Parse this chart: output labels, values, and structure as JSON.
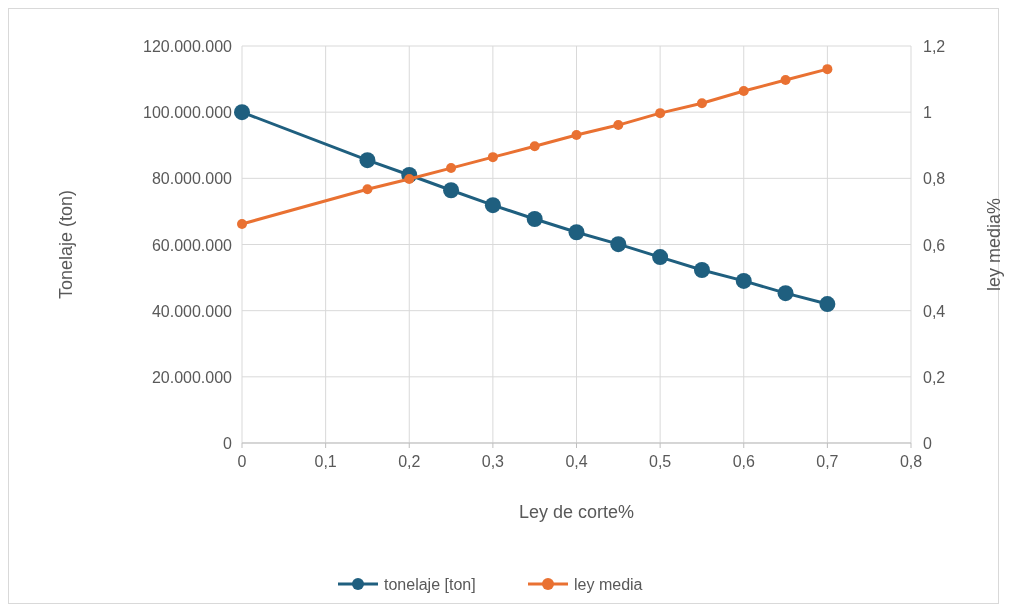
{
  "chart_data": {
    "type": "line",
    "xlabel": "Ley de corte%",
    "ylabel": "Tonelaje (ton)",
    "y2label": "ley media%",
    "x": [
      0,
      0.15,
      0.2,
      0.25,
      0.3,
      0.35,
      0.4,
      0.45,
      0.5,
      0.55,
      0.6,
      0.65,
      0.7
    ],
    "series": [
      {
        "name": "tonelaje [ton]",
        "color": "#1f5f7f",
        "values": [
          100000000,
          85500000,
          81000000,
          76400000,
          71900000,
          67700000,
          63700000,
          60100000,
          56200000,
          52300000,
          49000000,
          45300000,
          42000000
        ]
      },
      {
        "name": "ley media",
        "color": "#e97132",
        "axis": "y2",
        "values": [
          0.662,
          0.767,
          0.798,
          0.831,
          0.864,
          0.897,
          0.931,
          0.961,
          0.997,
          1.027,
          1.064,
          1.097,
          1.13
        ]
      }
    ],
    "xlim": [
      0,
      0.8
    ],
    "xticks": [
      0,
      {
        "value": 0.1,
        "label": "0,1"
      },
      {
        "value": 0.2,
        "label": "0,2"
      },
      {
        "value": 0.3,
        "label": "0,3"
      },
      {
        "value": 0.4,
        "label": "0,4"
      },
      {
        "value": 0.5,
        "label": "0,5"
      },
      {
        "value": 0.6,
        "label": "0,6"
      },
      {
        "value": 0.7,
        "label": "0,7"
      },
      {
        "value": 0.8,
        "label": "0,8"
      }
    ],
    "ylim": [
      0,
      120000000
    ],
    "yticks": [
      0,
      {
        "value": 20000000,
        "label": "20.000.000"
      },
      {
        "value": 40000000,
        "label": "40.000.000"
      },
      {
        "value": 60000000,
        "label": "60.000.000"
      },
      {
        "value": 80000000,
        "label": "80.000.000"
      },
      {
        "value": 100000000,
        "label": "100.000.000"
      },
      {
        "value": 120000000,
        "label": "120.000.000"
      }
    ],
    "y2lim": [
      0,
      1.2
    ],
    "y2ticks": [
      0,
      {
        "value": 0.2,
        "label": "0,2"
      },
      {
        "value": 0.4,
        "label": "0,4"
      },
      {
        "value": 0.6,
        "label": "0,6"
      },
      {
        "value": 0.8,
        "label": "0,8"
      },
      1,
      {
        "value": 1.2,
        "label": "1,2"
      }
    ],
    "grid": true,
    "legend": "bottom",
    "marker": "circle",
    "line_style": "solid"
  }
}
